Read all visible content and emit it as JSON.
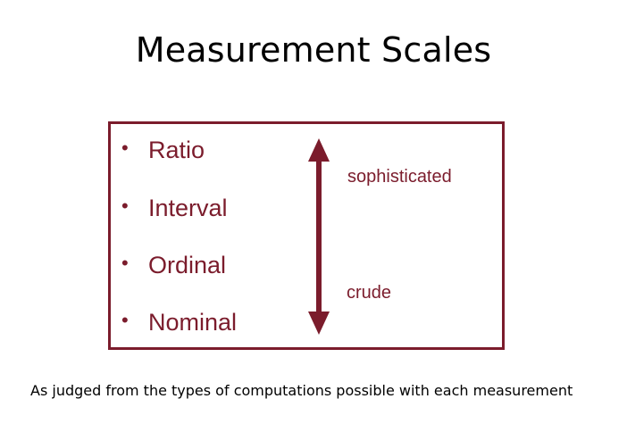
{
  "title": "Measurement Scales",
  "scales": [
    {
      "label": "Ratio"
    },
    {
      "label": "Interval"
    },
    {
      "label": "Ordinal"
    },
    {
      "label": "Nominal"
    }
  ],
  "bullet_glyph": "•",
  "arrow": {
    "top_label": "sophisticated",
    "bottom_label": "crude",
    "icon": "double-headed-vertical-arrow",
    "color": "#7b1c2c"
  },
  "caption": "As judged from the types of computations possible with each measurement",
  "colors": {
    "accent": "#7b1c2c",
    "text": "#000000",
    "background": "#ffffff"
  }
}
